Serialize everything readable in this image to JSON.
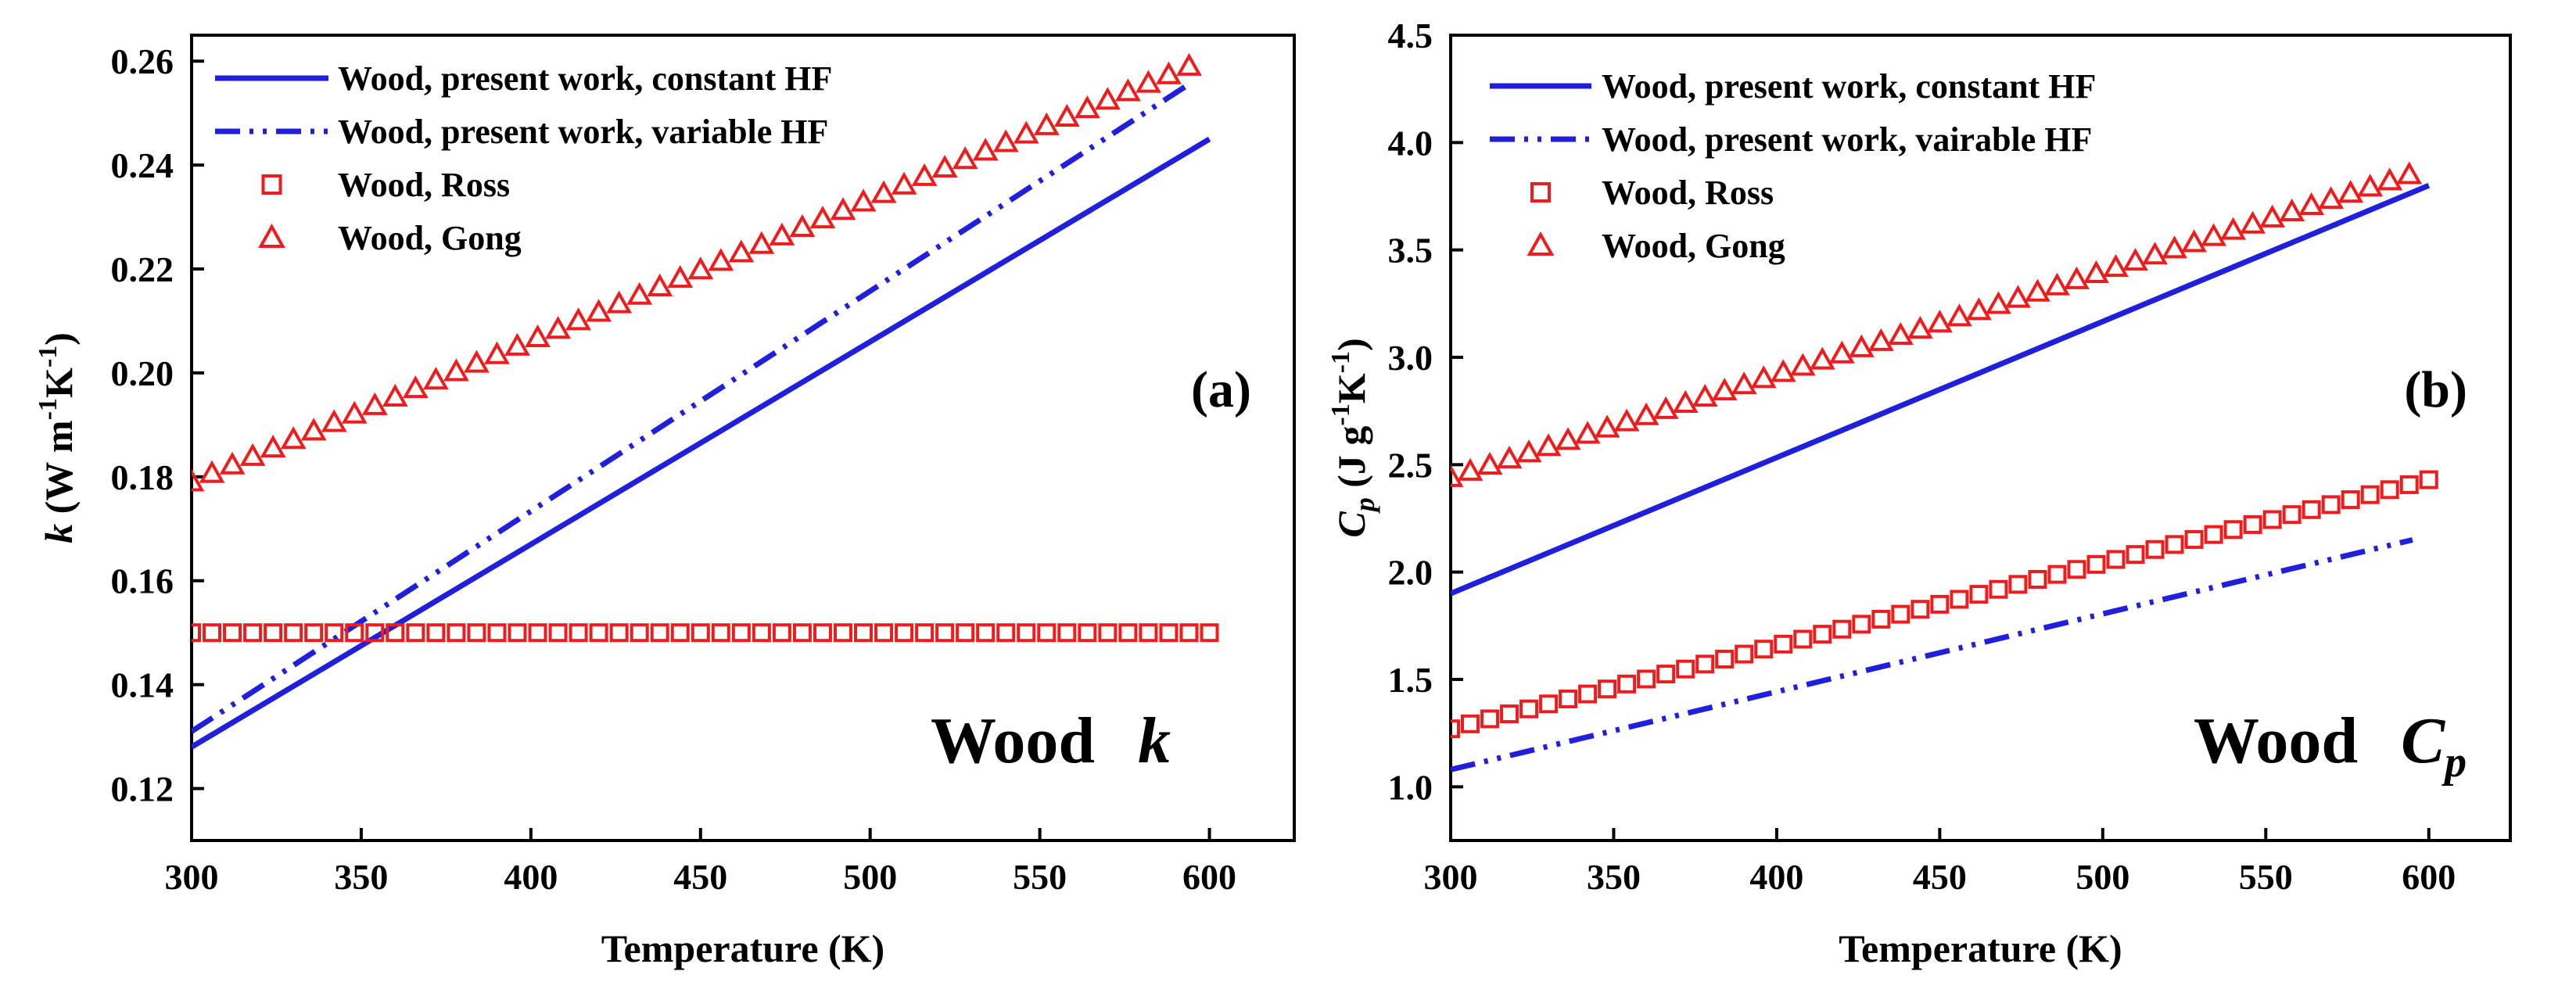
{
  "chart_data": [
    {
      "type": "line",
      "panel_label": "(a)",
      "material_label": "Wood",
      "property_symbol": "k",
      "xlabel": "Temperature (K)",
      "ylabel": {
        "symbol": "k",
        "units": " (W m",
        "exp1": "-1",
        "mid": "K",
        "exp2": "-1",
        "close": ")"
      },
      "xlim": [
        300,
        625
      ],
      "ylim": [
        0.11,
        0.265
      ],
      "xticks": [
        300,
        350,
        400,
        450,
        500,
        550,
        600
      ],
      "yticks": [
        0.12,
        0.14,
        0.16,
        0.18,
        0.2,
        0.22,
        0.24,
        0.26
      ],
      "xtick_labels": [
        "300",
        "350",
        "400",
        "450",
        "500",
        "550",
        "600"
      ],
      "ytick_labels": [
        "0.12",
        "0.14",
        "0.16",
        "0.18",
        "0.20",
        "0.22",
        "0.24",
        "0.26"
      ],
      "legend_position": "top-left",
      "series": [
        {
          "name": "Wood, present work, constant HF",
          "style": "solid",
          "color": "#1f1fdc",
          "x": [
            300,
            600
          ],
          "y": [
            0.128,
            0.245
          ]
        },
        {
          "name": "Wood, present work, variable HF",
          "style": "dashdotdot",
          "color": "#1f1fdc",
          "x": [
            300,
            595
          ],
          "y": [
            0.131,
            0.256
          ]
        },
        {
          "name": "Wood, Ross",
          "marker": "square",
          "color": "#ee1c1c",
          "x_start": 300,
          "x_end": 600,
          "x_step": 6,
          "y": [
            0.15,
            0.15
          ]
        },
        {
          "name": "Wood, Gong",
          "marker": "triangle",
          "color": "#ee1c1c",
          "x_start": 300,
          "x_end": 594,
          "x_step": 6,
          "y": [
            0.179,
            0.259
          ]
        }
      ]
    },
    {
      "type": "line",
      "panel_label": "(b)",
      "material_label": "Wood",
      "property_symbol": "C",
      "property_subscript": "p",
      "xlabel": "Temperature (K)",
      "ylabel": {
        "symbol": "C",
        "sub": "p",
        "units": " (J g",
        "exp1": "-1",
        "mid": "K",
        "exp2": "-1",
        "close": ")"
      },
      "xlim": [
        300,
        625
      ],
      "ylim": [
        0.75,
        4.5
      ],
      "xticks": [
        300,
        350,
        400,
        450,
        500,
        550,
        600
      ],
      "yticks": [
        1.0,
        1.5,
        2.0,
        2.5,
        3.0,
        3.5,
        4.0,
        4.5
      ],
      "xtick_labels": [
        "300",
        "350",
        "400",
        "450",
        "500",
        "550",
        "600"
      ],
      "ytick_labels": [
        "1.0",
        "1.5",
        "2.0",
        "2.5",
        "3.0",
        "3.5",
        "4.0",
        "4.5"
      ],
      "legend_position": "top-left",
      "series": [
        {
          "name": "Wood, present work, constant HF",
          "style": "solid",
          "color": "#1f1fdc",
          "x": [
            300,
            600
          ],
          "y": [
            1.9,
            3.8
          ]
        },
        {
          "name": "Wood, present work, vairable HF",
          "style": "dashdotdot",
          "color": "#1f1fdc",
          "x": [
            300,
            595
          ],
          "y": [
            1.08,
            2.15
          ]
        },
        {
          "name": "Wood, Ross",
          "marker": "square",
          "color": "#ee1c1c",
          "x_start": 300,
          "x_end": 600,
          "x_step": 6,
          "y": [
            1.27,
            2.43
          ]
        },
        {
          "name": "Wood, Gong",
          "marker": "triangle",
          "color": "#ee1c1c",
          "x_start": 300,
          "x_end": 594,
          "x_step": 6,
          "y": [
            2.44,
            3.85
          ]
        }
      ]
    }
  ]
}
